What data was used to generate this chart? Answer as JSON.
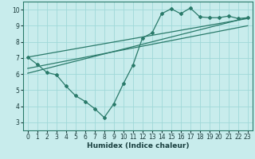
{
  "xlabel": "Humidex (Indice chaleur)",
  "bg_color": "#c8ecec",
  "grid_color": "#a0d8d8",
  "line_color": "#2a7a6a",
  "border_color": "#2a7a6a",
  "xlim": [
    -0.5,
    23.5
  ],
  "ylim": [
    2.5,
    10.5
  ],
  "xticks": [
    0,
    1,
    2,
    3,
    4,
    5,
    6,
    7,
    8,
    9,
    10,
    11,
    12,
    13,
    14,
    15,
    16,
    17,
    18,
    19,
    20,
    21,
    22,
    23
  ],
  "yticks": [
    3,
    4,
    5,
    6,
    7,
    8,
    9,
    10
  ],
  "series1_x": [
    0,
    1,
    2,
    3,
    4,
    5,
    6,
    7,
    8,
    9,
    10,
    11,
    12,
    13,
    14,
    15,
    16,
    17,
    18,
    19,
    20,
    21,
    22,
    23
  ],
  "series1_y": [
    7.05,
    6.6,
    6.1,
    5.95,
    5.25,
    4.65,
    4.3,
    3.85,
    3.3,
    4.15,
    5.4,
    6.55,
    8.25,
    8.55,
    9.75,
    10.05,
    9.75,
    10.1,
    9.55,
    9.5,
    9.5,
    9.6,
    9.45,
    9.5
  ],
  "line1_x": [
    0,
    23
  ],
  "line1_y": [
    6.05,
    9.5
  ],
  "line2_x": [
    0,
    23
  ],
  "line2_y": [
    6.35,
    9.0
  ],
  "line3_x": [
    0,
    23
  ],
  "line3_y": [
    7.05,
    9.45
  ],
  "tick_fontsize": 5.5,
  "label_fontsize": 6.5
}
